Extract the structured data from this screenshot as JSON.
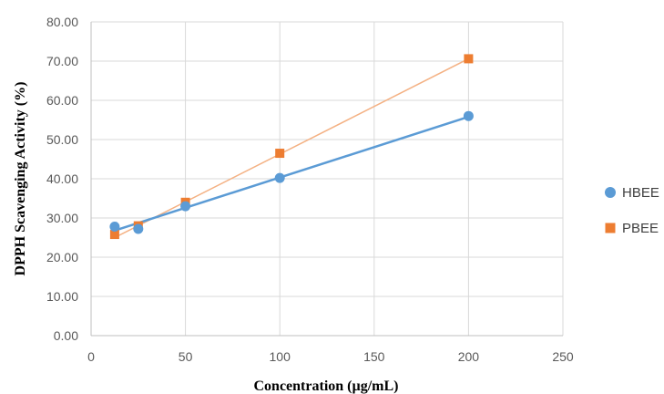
{
  "chart_data": {
    "type": "scatter",
    "title": "",
    "xlabel": "Concentration (µg/mL)",
    "ylabel": "DPPH Scavenging Activity (%)",
    "xlim": [
      0,
      250
    ],
    "ylim": [
      0,
      80
    ],
    "x_ticks": [
      "0",
      "50",
      "100",
      "150",
      "200",
      "250"
    ],
    "y_ticks": [
      "0.00",
      "10.00",
      "20.00",
      "30.00",
      "40.00",
      "50.00",
      "60.00",
      "70.00",
      "80.00"
    ],
    "grid": true,
    "legend_position": "right",
    "series": [
      {
        "name": "HBEE",
        "color": "#5b9bd5",
        "marker": "circle",
        "x": [
          12.5,
          25,
          50,
          100,
          200
        ],
        "y": [
          27.8,
          27.2,
          33.0,
          40.2,
          56.0
        ],
        "fit_line": {
          "x": [
            12.5,
            200
          ],
          "y": [
            26.8,
            55.8
          ]
        }
      },
      {
        "name": "PBEE",
        "color": "#ed7d31",
        "marker": "square",
        "x": [
          12.5,
          25,
          50,
          100,
          200
        ],
        "y": [
          25.8,
          28.0,
          34.0,
          46.5,
          70.6
        ],
        "fit_line": {
          "x": [
            12.5,
            200
          ],
          "y": [
            25.0,
            70.6
          ]
        }
      }
    ]
  }
}
